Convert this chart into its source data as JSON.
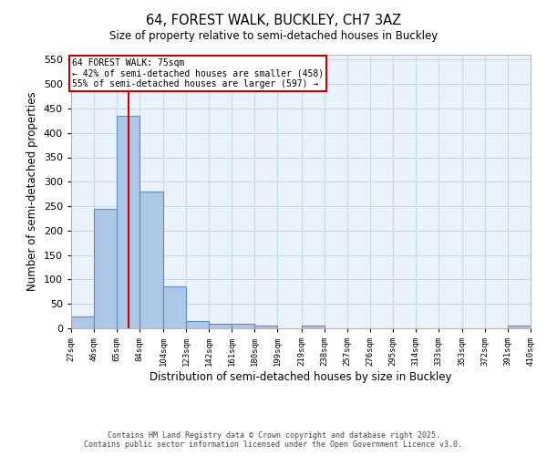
{
  "title": "64, FOREST WALK, BUCKLEY, CH7 3AZ",
  "subtitle": "Size of property relative to semi-detached houses in Buckley",
  "xlabel": "Distribution of semi-detached houses by size in Buckley",
  "ylabel": "Number of semi-detached properties",
  "footnote1": "Contains HM Land Registry data © Crown copyright and database right 2025.",
  "footnote2": "Contains public sector information licensed under the Open Government Licence v3.0.",
  "bin_edges": [
    27,
    46,
    65,
    84,
    104,
    123,
    142,
    161,
    180,
    199,
    219,
    238,
    257,
    276,
    295,
    314,
    333,
    353,
    372,
    391,
    410
  ],
  "bar_heights": [
    25,
    245,
    435,
    280,
    85,
    15,
    10,
    10,
    5,
    0,
    5,
    0,
    0,
    0,
    0,
    0,
    0,
    0,
    0,
    5
  ],
  "bar_color": "#aec6e8",
  "bar_edgecolor": "#5a8fc2",
  "grid_color": "#c8d8e8",
  "background_color": "#eaf2fb",
  "property_size": 75,
  "vline_color": "#cc0000",
  "ylim": [
    0,
    560
  ],
  "yticks": [
    0,
    50,
    100,
    150,
    200,
    250,
    300,
    350,
    400,
    450,
    500,
    550
  ],
  "annotation_title": "64 FOREST WALK: 75sqm",
  "annotation_line1": "← 42% of semi-detached houses are smaller (458)",
  "annotation_line2": "55% of semi-detached houses are larger (597) →",
  "annotation_box_color": "#cc0000",
  "tick_labels": [
    "27sqm",
    "46sqm",
    "65sqm",
    "84sqm",
    "104sqm",
    "123sqm",
    "142sqm",
    "161sqm",
    "180sqm",
    "199sqm",
    "219sqm",
    "238sqm",
    "257sqm",
    "276sqm",
    "295sqm",
    "314sqm",
    "333sqm",
    "353sqm",
    "372sqm",
    "391sqm",
    "410sqm"
  ]
}
